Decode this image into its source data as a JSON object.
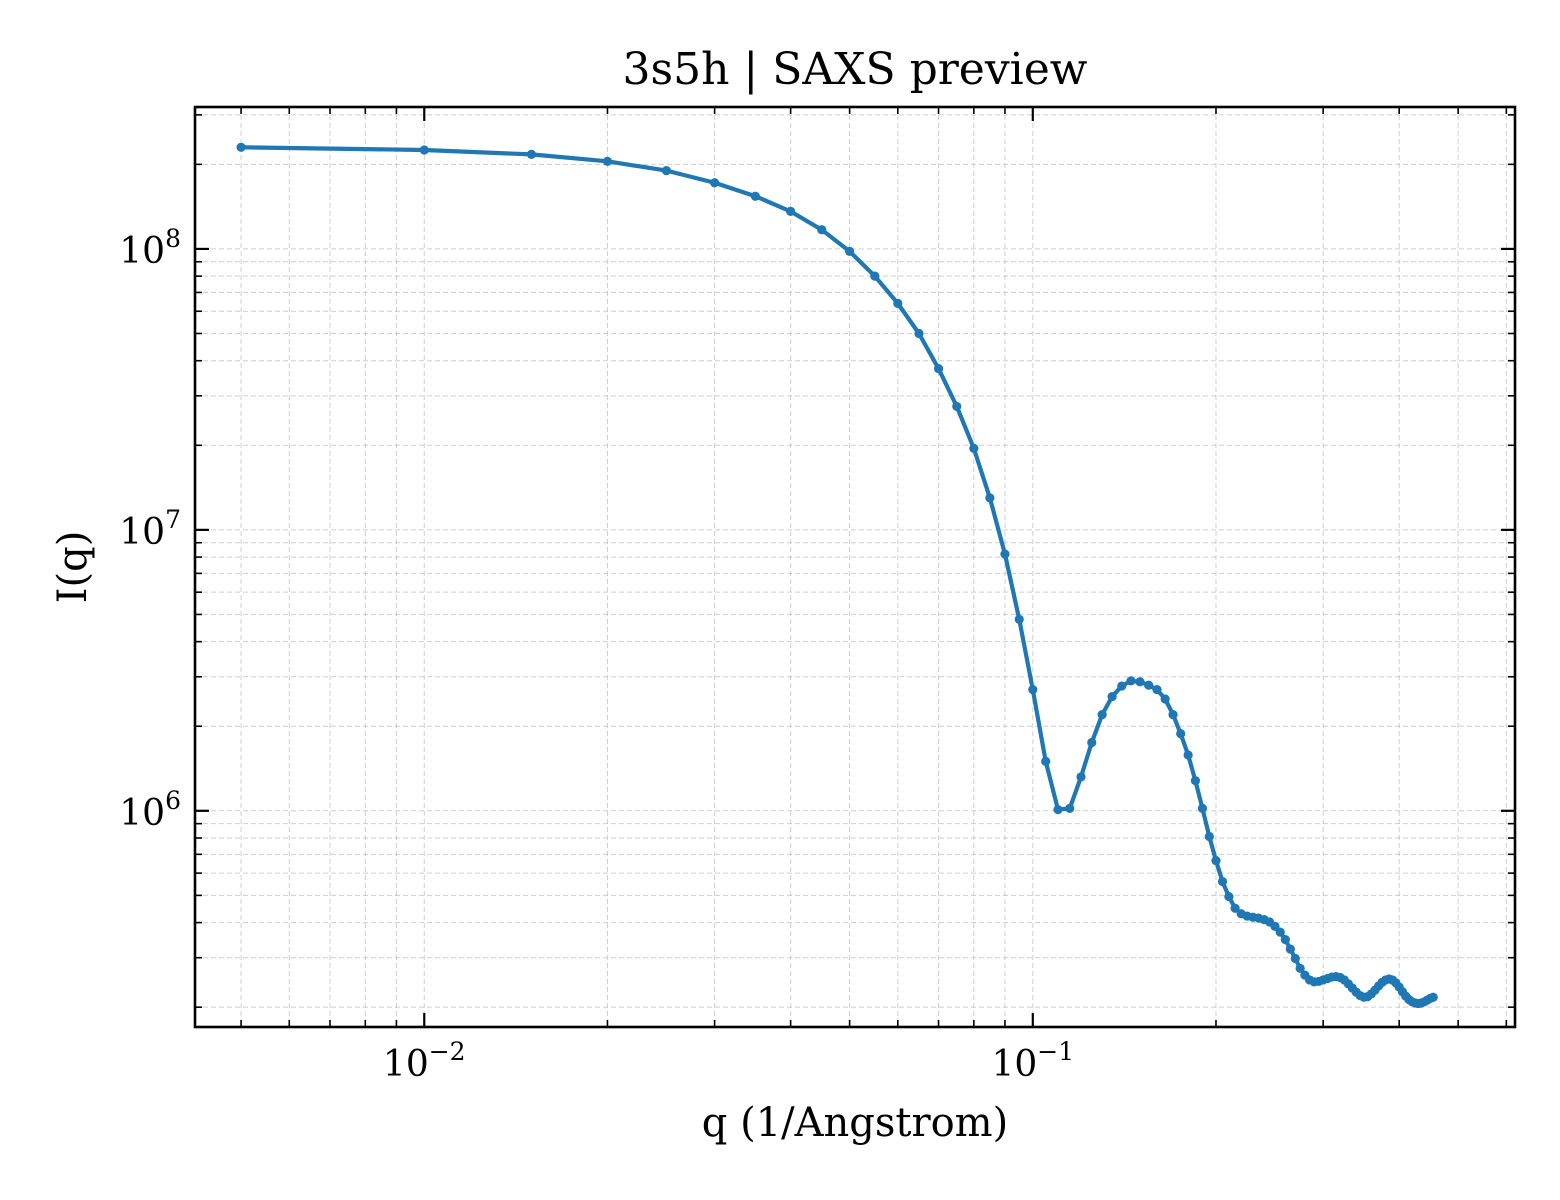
{
  "chart_data": {
    "type": "line",
    "title": "3s5h | SAXS preview",
    "xlabel": "q (1/Angstrom)",
    "ylabel": "I(q)",
    "xscale": "log",
    "yscale": "log",
    "xlim": [
      0.0042,
      0.62
    ],
    "ylim": [
      170000,
      320000000
    ],
    "grid": true,
    "color": "#1f77b4",
    "x_ticks": [
      {
        "value": 0.01,
        "base": "10",
        "exponent": "−2"
      },
      {
        "value": 0.1,
        "base": "10",
        "exponent": "−1"
      }
    ],
    "y_ticks": [
      {
        "value": 1000000,
        "base": "10",
        "exponent": "6"
      },
      {
        "value": 10000000,
        "base": "10",
        "exponent": "7"
      },
      {
        "value": 100000000,
        "base": "10",
        "exponent": "8"
      }
    ],
    "series": [
      {
        "points": [
          [
            0.005,
            230000000.0
          ],
          [
            0.01,
            225000000.0
          ],
          [
            0.015,
            217000000.0
          ],
          [
            0.02,
            205000000.0
          ],
          [
            0.025,
            190000000.0
          ],
          [
            0.03,
            172000000.0
          ],
          [
            0.035,
            154000000.0
          ],
          [
            0.04,
            136000000.0
          ],
          [
            0.045,
            117000000.0
          ],
          [
            0.05,
            98000000.0
          ],
          [
            0.055,
            80000000.0
          ],
          [
            0.06,
            64000000.0
          ],
          [
            0.065,
            50000000.0
          ],
          [
            0.07,
            37500000.0
          ],
          [
            0.075,
            27500000.0
          ],
          [
            0.08,
            19500000.0
          ],
          [
            0.085,
            13000000.0
          ],
          [
            0.09,
            8200000.0
          ],
          [
            0.095,
            4800000.0
          ],
          [
            0.1,
            2700000.0
          ],
          [
            0.105,
            1500000.0
          ],
          [
            0.11,
            1010000.0
          ],
          [
            0.115,
            1020000.0
          ],
          [
            0.12,
            1320000.0
          ],
          [
            0.125,
            1750000.0
          ],
          [
            0.13,
            2200000.0
          ],
          [
            0.135,
            2550000.0
          ],
          [
            0.14,
            2780000.0
          ],
          [
            0.145,
            2900000.0
          ],
          [
            0.15,
            2880000.0
          ],
          [
            0.155,
            2800000.0
          ],
          [
            0.16,
            2700000.0
          ],
          [
            0.165,
            2500000.0
          ],
          [
            0.17,
            2200000.0
          ],
          [
            0.175,
            1880000.0
          ],
          [
            0.18,
            1580000.0
          ],
          [
            0.185,
            1280000.0
          ],
          [
            0.19,
            1020000.0
          ],
          [
            0.195,
            810000.0
          ],
          [
            0.2,
            665000.0
          ],
          [
            0.205,
            560000.0
          ],
          [
            0.21,
            495000.0
          ],
          [
            0.215,
            450000.0
          ],
          [
            0.22,
            430000.0
          ],
          [
            0.225,
            422000.0
          ],
          [
            0.23,
            418000.0
          ],
          [
            0.235,
            415000.0
          ],
          [
            0.24,
            410000.0
          ],
          [
            0.245,
            402000.0
          ],
          [
            0.25,
            388000.0
          ],
          [
            0.255,
            370000.0
          ],
          [
            0.26,
            348000.0
          ],
          [
            0.265,
            322000.0
          ],
          [
            0.27,
            298000.0
          ],
          [
            0.275,
            275000.0
          ],
          [
            0.28,
            260000.0
          ],
          [
            0.285,
            250000.0
          ],
          [
            0.29,
            246000.0
          ],
          [
            0.295,
            247000.0
          ],
          [
            0.3,
            250000.0
          ],
          [
            0.305,
            253000.0
          ],
          [
            0.31,
            256000.0
          ],
          [
            0.315,
            257000.0
          ],
          [
            0.32,
            255000.0
          ],
          [
            0.325,
            250000.0
          ],
          [
            0.33,
            242000.0
          ],
          [
            0.335,
            234000.0
          ],
          [
            0.34,
            226000.0
          ],
          [
            0.345,
            220000.0
          ],
          [
            0.35,
            217000.0
          ],
          [
            0.355,
            218000.0
          ],
          [
            0.36,
            223000.0
          ],
          [
            0.365,
            230000.0
          ],
          [
            0.37,
            238000.0
          ],
          [
            0.375,
            245000.0
          ],
          [
            0.38,
            250000.0
          ],
          [
            0.385,
            252000.0
          ],
          [
            0.39,
            250000.0
          ],
          [
            0.395,
            244000.0
          ],
          [
            0.4,
            236000.0
          ],
          [
            0.405,
            227000.0
          ],
          [
            0.41,
            219000.0
          ],
          [
            0.415,
            213000.0
          ],
          [
            0.42,
            209000.0
          ],
          [
            0.425,
            207000.0
          ],
          [
            0.43,
            206000.0
          ],
          [
            0.435,
            207000.0
          ],
          [
            0.44,
            209000.0
          ],
          [
            0.445,
            212000.0
          ],
          [
            0.45,
            215000.0
          ],
          [
            0.455,
            217000.0
          ]
        ]
      }
    ]
  }
}
